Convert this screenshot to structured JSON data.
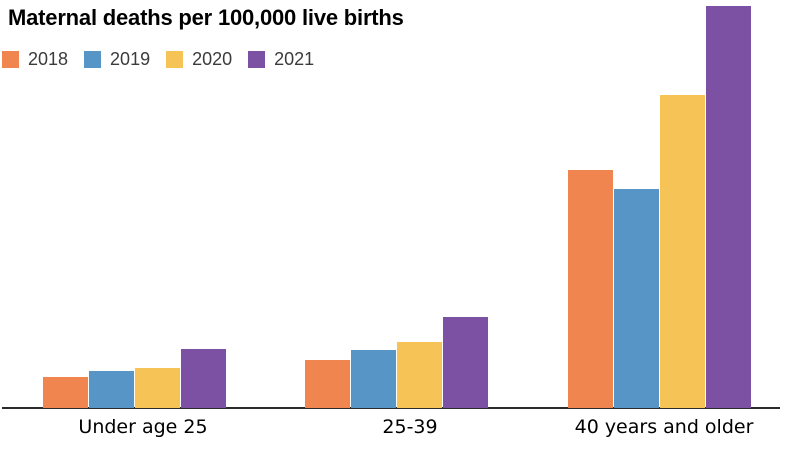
{
  "header": {
    "title": "Maternal deaths per 100,000 live births"
  },
  "legend": {
    "items": [
      {
        "label": "2018",
        "color": "#F0854F"
      },
      {
        "label": "2019",
        "color": "#5795C6"
      },
      {
        "label": "2020",
        "color": "#F5C356"
      },
      {
        "label": "2021",
        "color": "#7C51A4"
      }
    ]
  },
  "chart_data": {
    "type": "bar",
    "title": "Maternal deaths per 100,000 live births",
    "categories": [
      "Under age 25",
      "25-39",
      "40 years and older"
    ],
    "series": [
      {
        "name": "2018",
        "color": "#F0854F",
        "values": [
          10.6,
          16.6,
          81.9
        ]
      },
      {
        "name": "2019",
        "color": "#5795C6",
        "values": [
          12.6,
          19.9,
          75.5
        ]
      },
      {
        "name": "2020",
        "color": "#F5C356",
        "values": [
          13.8,
          22.8,
          107.9
        ]
      },
      {
        "name": "2021",
        "color": "#7C51A4",
        "values": [
          20.4,
          31.3,
          138.5
        ]
      }
    ],
    "xlabel": "",
    "ylabel": "",
    "ylim": [
      0,
      140
    ],
    "grid": false,
    "y_axis_visible": false,
    "legend_position": "top-left",
    "axis_color": "#2b2b2b",
    "background": "#ffffff"
  }
}
